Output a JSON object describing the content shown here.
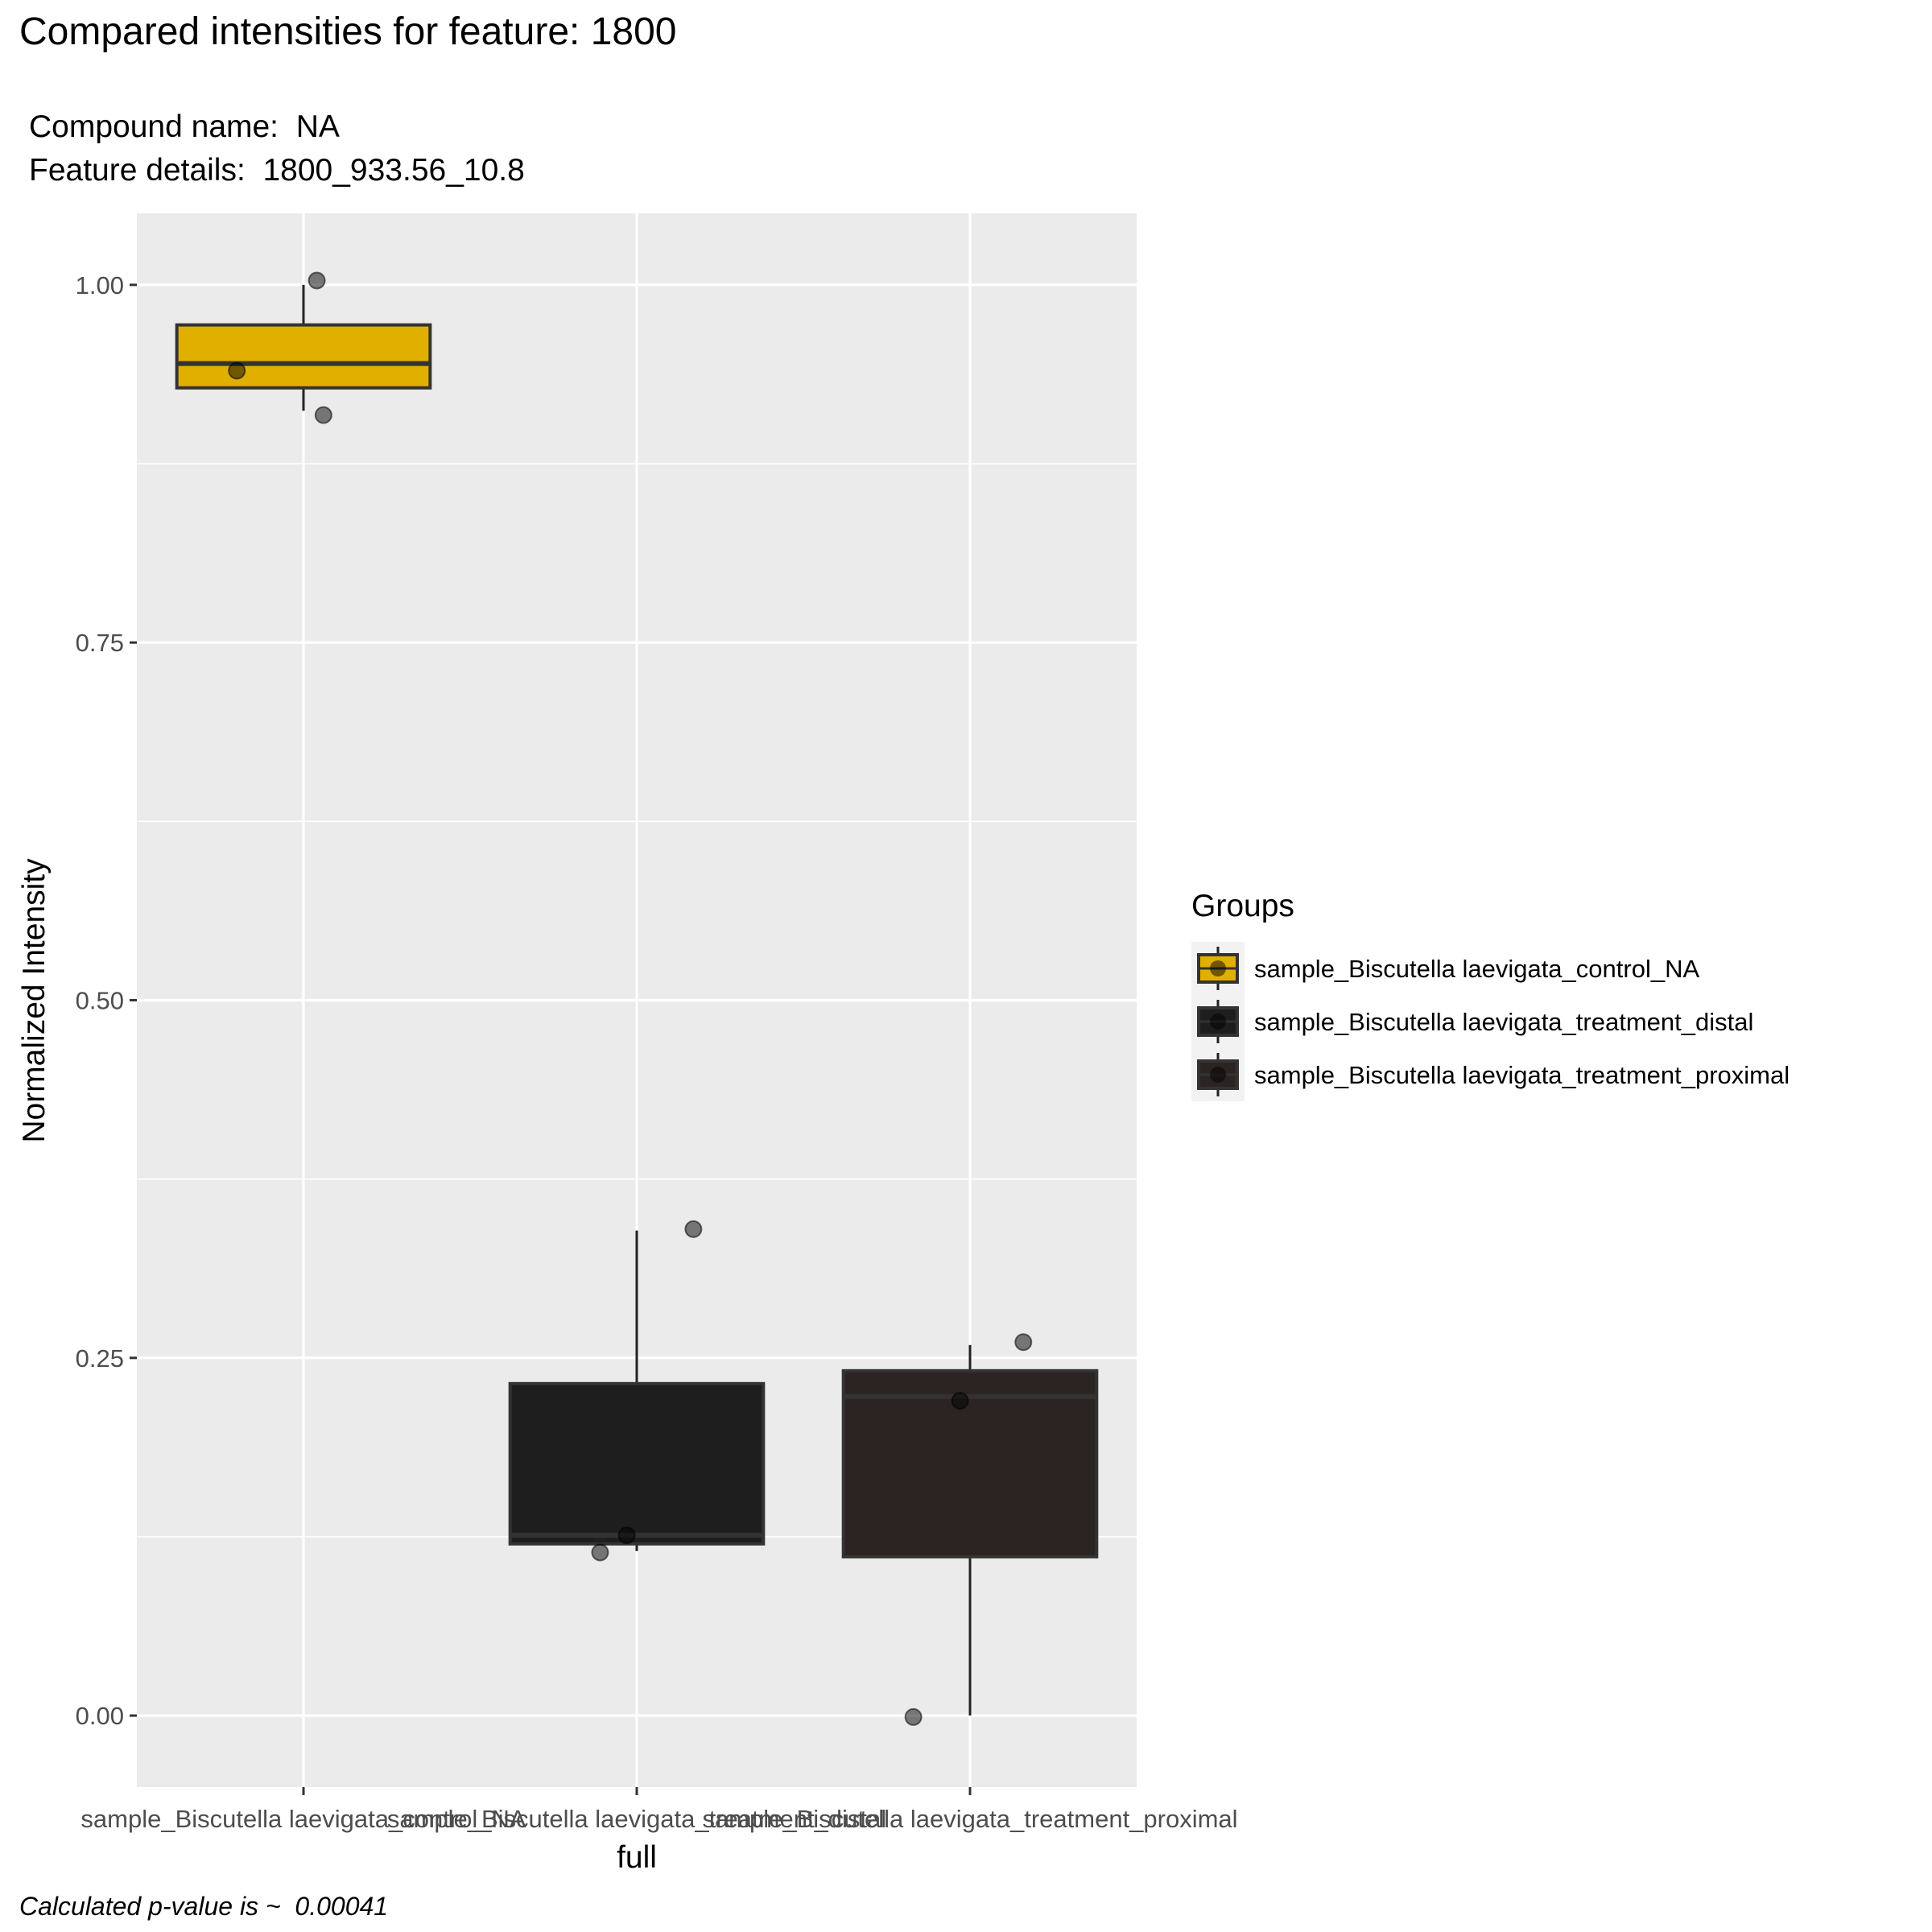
{
  "chart_data": {
    "type": "box",
    "title": "Compared intensities for feature: 1800",
    "subtitle_lines": [
      "Compound name:  NA",
      "Feature details:  1800_933.56_10.8"
    ],
    "caption": "Calculated p-value is ~  0.00041",
    "xlabel": "full",
    "ylabel": "Normalized Intensity",
    "ylim": [
      -0.05,
      1.05
    ],
    "yticks": [
      0.0,
      0.25,
      0.5,
      0.75,
      1.0
    ],
    "ytick_labels": [
      "0.00",
      "0.25",
      "0.50",
      "0.75",
      "1.00"
    ],
    "grid": true,
    "legend": {
      "title": "Groups",
      "position": "right"
    },
    "categories": [
      "sample_Biscutella laevigata_control_NA",
      "sample_Biscutella laevigata_treatment_distal",
      "sample_Biscutella laevigata_treatment_proximal"
    ],
    "series": [
      {
        "name": "sample_Biscutella laevigata_control_NA",
        "color": "#E0AF00",
        "box": {
          "min": 0.912,
          "q1": 0.928,
          "median": 0.945,
          "q3": 0.972,
          "max": 1.0
        },
        "points": [
          {
            "x_offset": 0.04,
            "y": 1.003
          },
          {
            "x_offset": -0.2,
            "y": 0.94
          },
          {
            "x_offset": 0.06,
            "y": 0.909
          }
        ]
      },
      {
        "name": "sample_Biscutella laevigata_treatment_distal",
        "color": "#1E1E1E",
        "box": {
          "min": 0.115,
          "q1": 0.12,
          "median": 0.126,
          "q3": 0.232,
          "max": 0.339
        },
        "points": [
          {
            "x_offset": 0.17,
            "y": 0.34
          },
          {
            "x_offset": -0.03,
            "y": 0.126
          },
          {
            "x_offset": -0.11,
            "y": 0.114
          }
        ]
      },
      {
        "name": "sample_Biscutella laevigata_treatment_proximal",
        "color": "#2C2422",
        "box": {
          "min": 0.0,
          "q1": 0.111,
          "median": 0.223,
          "q3": 0.241,
          "max": 0.259
        },
        "points": [
          {
            "x_offset": 0.16,
            "y": 0.261
          },
          {
            "x_offset": -0.03,
            "y": 0.22
          },
          {
            "x_offset": -0.17,
            "y": -0.001
          }
        ]
      }
    ]
  }
}
